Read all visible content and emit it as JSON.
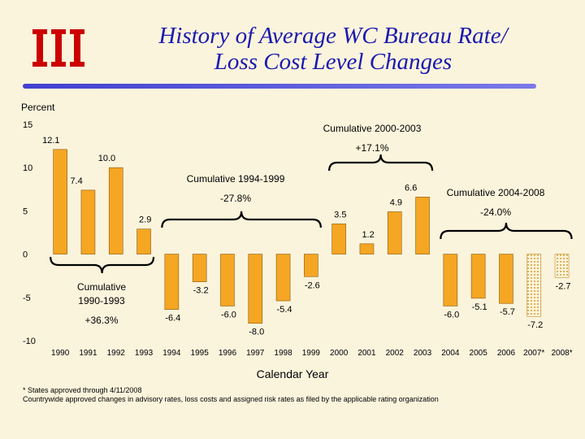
{
  "title_line1": "History of Average WC Bureau Rate/",
  "title_line2": "Loss Cost Level Changes",
  "logo": {
    "icon": "iii-logo",
    "color": "#cc0000"
  },
  "colors": {
    "bar_fill": "#f5a623",
    "bar_stroke": "#8a5a10",
    "brace": "#000000",
    "title": "#1a1ab0"
  },
  "footnotes": [
    "* States approved through 4/11/2008",
    "Countrywide approved changes in advisory rates, loss costs and assigned risk rates as filed by the applicable rating organization"
  ],
  "chart_data": {
    "type": "bar",
    "ylabel": "Percent",
    "xlabel": "Calendar Year",
    "ylim": [
      -10,
      15
    ],
    "yticks": [
      15,
      10,
      5,
      0,
      -5,
      -10
    ],
    "categories": [
      "1990",
      "1991",
      "1992",
      "1993",
      "1994",
      "1995",
      "1996",
      "1997",
      "1998",
      "1999",
      "2000",
      "2001",
      "2002",
      "2003",
      "2004",
      "2005",
      "2006",
      "2007*",
      "2008*"
    ],
    "values": [
      12.1,
      7.4,
      10.0,
      2.9,
      -6.4,
      -3.2,
      -6.0,
      -8.0,
      -5.4,
      -2.6,
      3.5,
      1.2,
      4.9,
      6.6,
      -6.0,
      -5.1,
      -5.7,
      -7.2,
      -2.7
    ],
    "value_labels": [
      "12.1",
      "7.4",
      "10.0",
      "2.9",
      "-6.4",
      "-3.2",
      "-6.0",
      "-8.0",
      "-5.4",
      "-2.6",
      "3.5",
      "1.2",
      "4.9",
      "6.6",
      "-6.0",
      "-5.1",
      "-5.7",
      "-7.2",
      "-2.7"
    ],
    "hatched_categories": [
      "2007*",
      "2008*"
    ],
    "annotations": [
      {
        "name": "cumulative-1990-1993",
        "lines": [
          "Cumulative",
          "1990-1993",
          "+36.3%"
        ],
        "from": 0,
        "to": 3
      },
      {
        "name": "cumulative-1994-1999",
        "lines": [
          "Cumulative 1994-1999",
          "-27.8%"
        ],
        "from": 4,
        "to": 9
      },
      {
        "name": "cumulative-2000-2003",
        "lines": [
          "Cumulative 2000-2003",
          "+17.1%"
        ],
        "from": 10,
        "to": 13
      },
      {
        "name": "cumulative-2004-2008",
        "lines": [
          "Cumulative 2004-2008",
          "-24.0%"
        ],
        "from": 14,
        "to": 18
      }
    ]
  }
}
